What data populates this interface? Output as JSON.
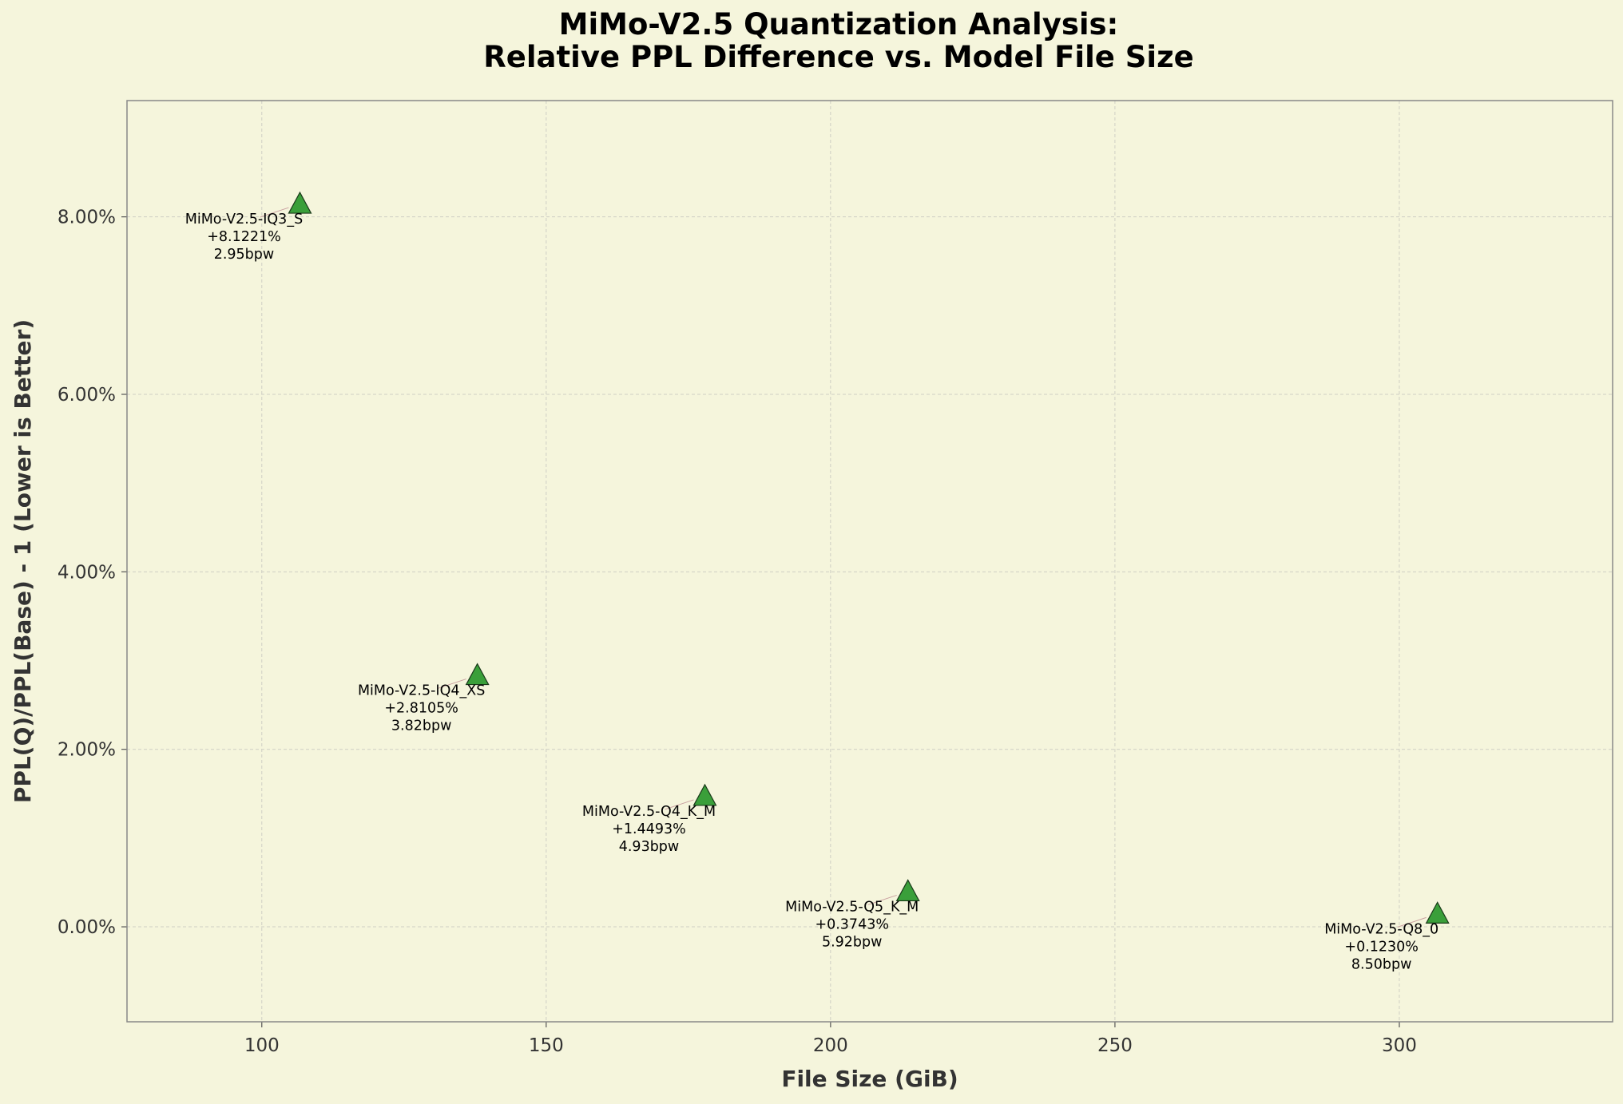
{
  "chart_data": {
    "type": "scatter",
    "title": [
      "MiMo-V2.5 Quantization Analysis:",
      "Relative PPL Difference vs. Model File Size"
    ],
    "xlabel": "File Size (GiB)",
    "ylabel": "PPL(Q)/PPL(Base) - 1 (Lower is Better)",
    "xlim": [
      76.3,
      337.5
    ],
    "ylim": [
      -1.07,
      9.31
    ],
    "xticks": [
      100,
      150,
      200,
      250,
      300
    ],
    "xtick_labels": [
      "100",
      "150",
      "200",
      "250",
      "300"
    ],
    "yticks": [
      0,
      2,
      4,
      6,
      8
    ],
    "ytick_labels": [
      "0.00%",
      "2.00%",
      "4.00%",
      "6.00%",
      "8.00%"
    ],
    "grid": true,
    "marker": "triangle",
    "colors": {
      "background": "#f5f5dc",
      "marker_fill": "#3a9f3a",
      "marker_edge": "#1a3a1a",
      "spine": "#888888",
      "grid": "#cfcfc4"
    },
    "points": [
      {
        "model": "MiMo-V2.5-IQ3_S",
        "x": 106.7,
        "y": 8.1221,
        "pct": "+8.1221%",
        "bpw": "2.95bpw"
      },
      {
        "model": "MiMo-V2.5-IQ4_XS",
        "x": 137.9,
        "y": 2.8105,
        "pct": "+2.8105%",
        "bpw": "3.82bpw"
      },
      {
        "model": "MiMo-V2.5-Q4_K_M",
        "x": 177.9,
        "y": 1.4493,
        "pct": "+1.4493%",
        "bpw": "4.93bpw"
      },
      {
        "model": "MiMo-V2.5-Q5_K_M",
        "x": 213.6,
        "y": 0.3743,
        "pct": "+0.3743%",
        "bpw": "5.92bpw"
      },
      {
        "model": "MiMo-V2.5-Q8_0",
        "x": 306.7,
        "y": 0.123,
        "pct": "+0.1230%",
        "bpw": "8.50bpw"
      }
    ]
  }
}
